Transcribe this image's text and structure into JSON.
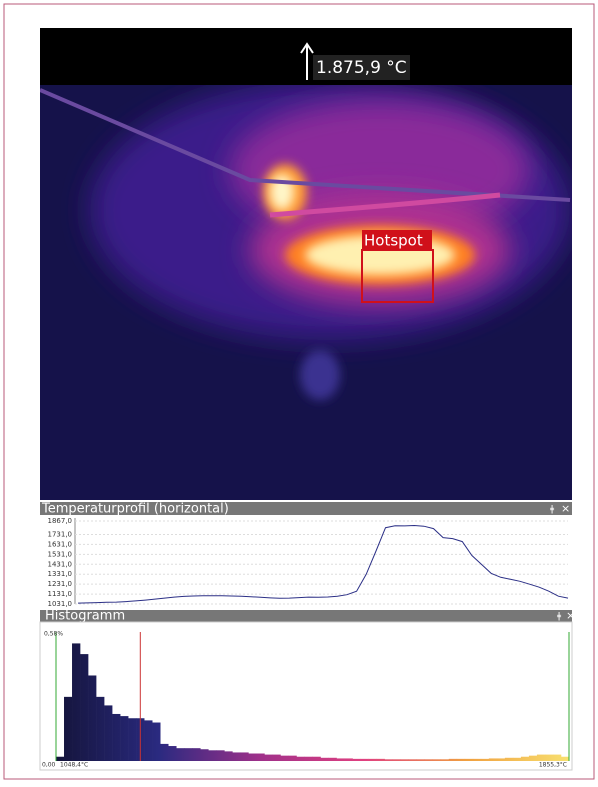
{
  "header": {
    "max_temp": "1.875,9 °C"
  },
  "image": {
    "hotspot_label": "Hotspot"
  },
  "profile": {
    "title": "Temperaturprofil (horizontal)",
    "pin": "ǂ",
    "close": "×",
    "color": "#2b2f86",
    "ylim": [
      1031,
      1867
    ],
    "yticks": [
      {
        "value": 1867,
        "label": "1867,0"
      },
      {
        "value": 1731,
        "label": "1731,0"
      },
      {
        "value": 1631,
        "label": "1631,0"
      },
      {
        "value": 1531,
        "label": "1531,0"
      },
      {
        "value": 1431,
        "label": "1431,0"
      },
      {
        "value": 1331,
        "label": "1331,0"
      },
      {
        "value": 1231,
        "label": "1231,0"
      },
      {
        "value": 1131,
        "label": "1131,0"
      },
      {
        "value": 1031,
        "label": "1031,0"
      }
    ],
    "values": [
      1040,
      1042,
      1045,
      1048,
      1050,
      1055,
      1062,
      1070,
      1080,
      1090,
      1100,
      1108,
      1112,
      1114,
      1115,
      1115,
      1112,
      1110,
      1105,
      1098,
      1092,
      1088,
      1090,
      1095,
      1100,
      1098,
      1102,
      1110,
      1125,
      1160,
      1330,
      1560,
      1800,
      1820,
      1818,
      1822,
      1815,
      1790,
      1700,
      1690,
      1660,
      1520,
      1430,
      1340,
      1300,
      1280,
      1260,
      1230,
      1200,
      1160,
      1110,
      1090
    ]
  },
  "histogram": {
    "title": "Histogramm",
    "pin": "ǂ",
    "close": "×",
    "ylim": [
      0,
      0.58
    ],
    "yticks": [
      {
        "value": 0,
        "label": "0,00"
      },
      {
        "value": 0.58,
        "label": "0,58%"
      }
    ],
    "xlim": [
      1048.4,
      1855.3
    ],
    "xticks": [
      {
        "value": 1048.4,
        "label": "1048,4°C"
      },
      {
        "value": 1855.3,
        "label": "1855,3°C"
      }
    ],
    "marker": 1181,
    "values": [
      0.02,
      0.3,
      0.55,
      0.5,
      0.4,
      0.3,
      0.26,
      0.22,
      0.21,
      0.2,
      0.2,
      0.19,
      0.18,
      0.08,
      0.07,
      0.06,
      0.06,
      0.06,
      0.055,
      0.05,
      0.05,
      0.045,
      0.04,
      0.04,
      0.035,
      0.035,
      0.03,
      0.03,
      0.025,
      0.025,
      0.02,
      0.02,
      0.02,
      0.015,
      0.015,
      0.012,
      0.012,
      0.01,
      0.01,
      0.01,
      0.01,
      0.008,
      0.008,
      0.008,
      0.008,
      0.008,
      0.008,
      0.008,
      0.008,
      0.01,
      0.01,
      0.01,
      0.01,
      0.01,
      0.012,
      0.012,
      0.015,
      0.015,
      0.02,
      0.025,
      0.03,
      0.03,
      0.03,
      0.02
    ]
  }
}
